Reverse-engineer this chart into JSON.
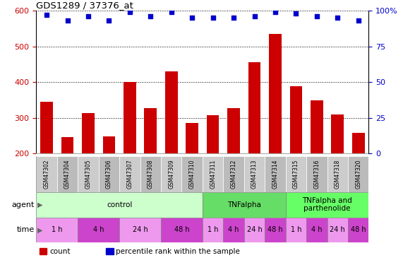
{
  "title": "GDS1289 / 37376_at",
  "samples": [
    "GSM47302",
    "GSM47304",
    "GSM47305",
    "GSM47306",
    "GSM47307",
    "GSM47308",
    "GSM47309",
    "GSM47310",
    "GSM47311",
    "GSM47312",
    "GSM47313",
    "GSM47314",
    "GSM47315",
    "GSM47316",
    "GSM47318",
    "GSM47320"
  ],
  "counts": [
    345,
    247,
    313,
    248,
    400,
    327,
    430,
    285,
    308,
    328,
    455,
    535,
    388,
    350,
    310,
    258
  ],
  "percentiles": [
    97,
    93,
    96,
    93,
    99,
    96,
    99,
    95,
    95,
    95,
    96,
    99,
    98,
    96,
    95,
    93
  ],
  "ylim_left": [
    200,
    600
  ],
  "yticks_left": [
    200,
    300,
    400,
    500,
    600
  ],
  "ylim_right": [
    0,
    100
  ],
  "yticks_right": [
    0,
    25,
    50,
    75,
    100
  ],
  "bar_color": "#cc0000",
  "dot_color": "#0000cc",
  "bar_width": 0.6,
  "agent_groups": [
    {
      "label": "control",
      "start": 0,
      "end": 8,
      "color": "#ccffcc"
    },
    {
      "label": "TNFalpha",
      "start": 8,
      "end": 12,
      "color": "#66dd66"
    },
    {
      "label": "TNFalpha and\nparthenolide",
      "start": 12,
      "end": 16,
      "color": "#66ff66"
    }
  ],
  "time_groups": [
    {
      "label": "1 h",
      "start": 0,
      "end": 2,
      "color": "#ee99ee"
    },
    {
      "label": "4 h",
      "start": 2,
      "end": 4,
      "color": "#cc44cc"
    },
    {
      "label": "24 h",
      "start": 4,
      "end": 6,
      "color": "#ee99ee"
    },
    {
      "label": "48 h",
      "start": 6,
      "end": 8,
      "color": "#cc44cc"
    },
    {
      "label": "1 h",
      "start": 8,
      "end": 9,
      "color": "#ee99ee"
    },
    {
      "label": "4 h",
      "start": 9,
      "end": 10,
      "color": "#cc44cc"
    },
    {
      "label": "24 h",
      "start": 10,
      "end": 11,
      "color": "#ee99ee"
    },
    {
      "label": "48 h",
      "start": 11,
      "end": 12,
      "color": "#cc44cc"
    },
    {
      "label": "1 h",
      "start": 12,
      "end": 13,
      "color": "#ee99ee"
    },
    {
      "label": "4 h",
      "start": 13,
      "end": 14,
      "color": "#cc44cc"
    },
    {
      "label": "24 h",
      "start": 14,
      "end": 15,
      "color": "#ee99ee"
    },
    {
      "label": "48 h",
      "start": 15,
      "end": 16,
      "color": "#cc44cc"
    }
  ],
  "agent_label": "agent",
  "time_label": "time",
  "legend_count_color": "#cc0000",
  "legend_dot_color": "#0000cc",
  "tick_label_color_left": "#cc0000",
  "tick_label_color_right": "#0000cc",
  "sample_bg_even": "#cccccc",
  "sample_bg_odd": "#bbbbbb"
}
